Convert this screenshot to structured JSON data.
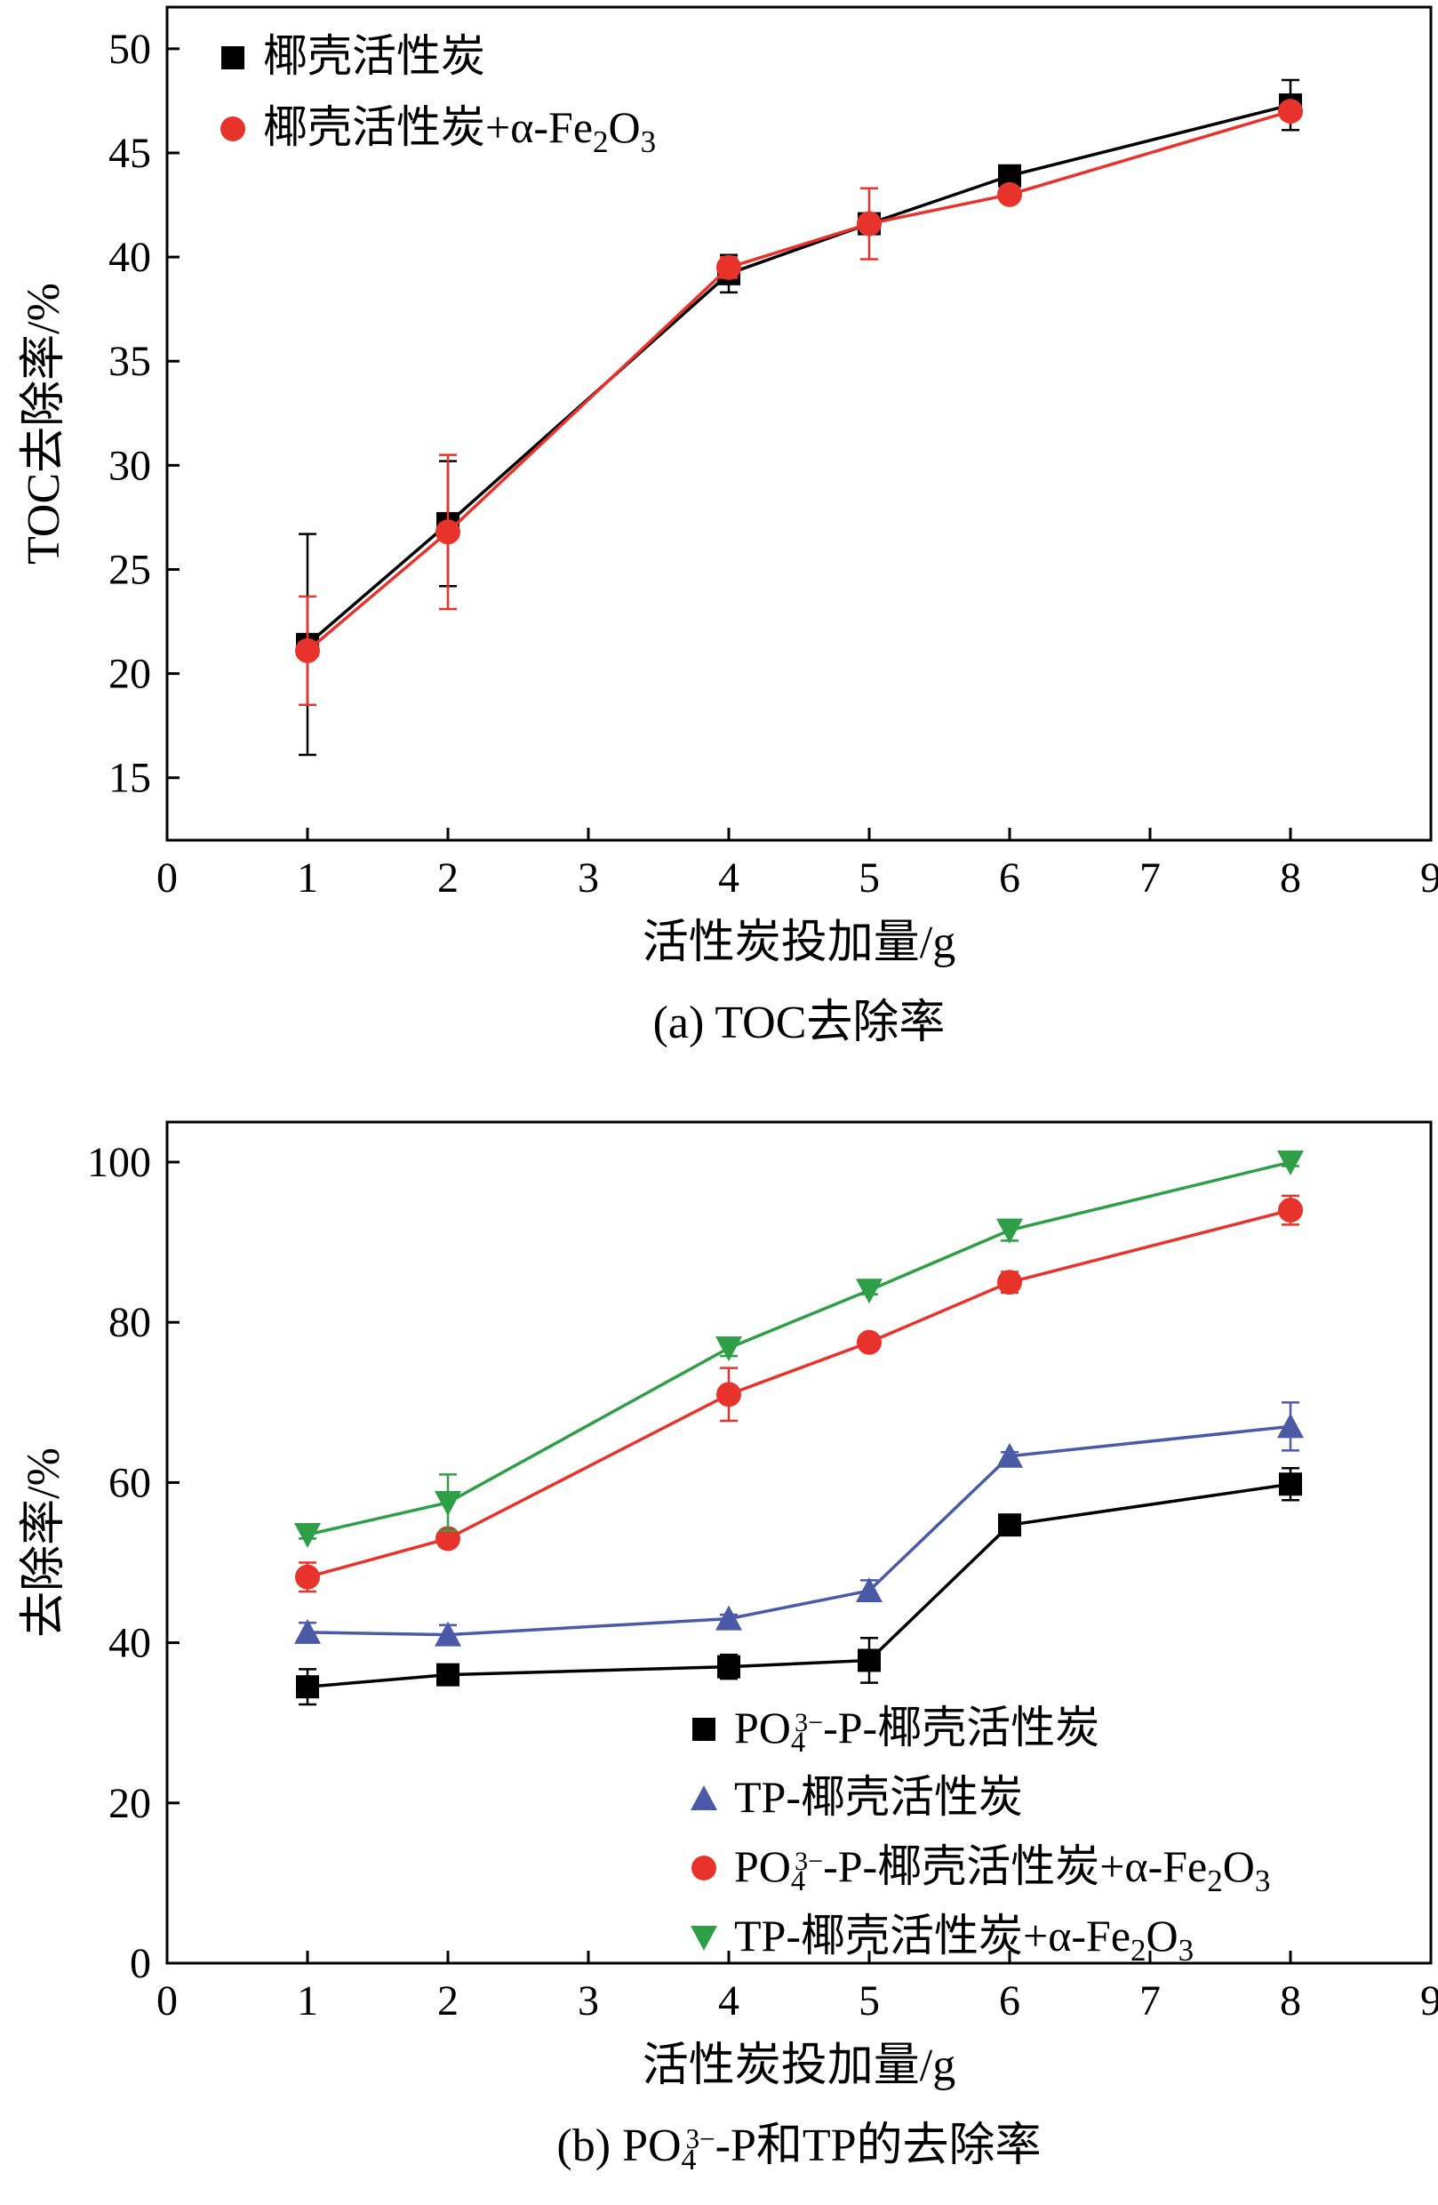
{
  "chart_data": [
    {
      "type": "line",
      "panel": "a",
      "caption": "(a) TOC去除率",
      "xlabel": "活性炭投加量/g",
      "ylabel": "TOC去除率/%",
      "xlim": [
        0,
        9
      ],
      "ylim": [
        12,
        52
      ],
      "xticks": [
        0,
        1,
        2,
        3,
        4,
        5,
        6,
        7,
        8,
        9
      ],
      "yticks": [
        15,
        20,
        25,
        30,
        35,
        40,
        45,
        50
      ],
      "grid": false,
      "legend_position": "top-left",
      "x": [
        1,
        2,
        4,
        5,
        6,
        8
      ],
      "series": [
        {
          "name": "椰壳活性炭",
          "marker": "square",
          "color": "#000000",
          "values": [
            21.4,
            27.2,
            39.2,
            41.6,
            43.9,
            47.3
          ],
          "errors": [
            5.3,
            3.0,
            0.9,
            0.0,
            0.0,
            1.2
          ]
        },
        {
          "name": "椰壳活性炭+α-Fe2O3",
          "marker": "circle",
          "color": "#e8332d",
          "values": [
            21.1,
            26.8,
            39.5,
            41.6,
            43.0,
            47.0
          ],
          "errors": [
            2.6,
            3.7,
            0.5,
            1.7,
            0.0,
            0.0
          ]
        }
      ]
    },
    {
      "type": "line",
      "panel": "b",
      "caption": "(b) PO43−-P和TP的去除率",
      "xlabel": "活性炭投加量/g",
      "ylabel": "去除率/%",
      "xlim": [
        0,
        9
      ],
      "ylim": [
        0,
        105
      ],
      "xticks": [
        0,
        1,
        2,
        3,
        4,
        5,
        6,
        7,
        8,
        9
      ],
      "yticks": [
        0,
        20,
        40,
        60,
        80,
        100
      ],
      "grid": false,
      "legend_position": "bottom-right",
      "x": [
        1,
        2,
        4,
        5,
        6,
        8
      ],
      "series": [
        {
          "name": "PO43−-P-椰壳活性炭",
          "marker": "square",
          "color": "#000000",
          "values": [
            34.5,
            36.0,
            37.0,
            37.8,
            54.7,
            59.8
          ],
          "errors": [
            2.2,
            0.5,
            1.5,
            2.8,
            0.5,
            2.0
          ]
        },
        {
          "name": "TP-椰壳活性炭",
          "marker": "triangle-up",
          "color": "#4a5aa6",
          "values": [
            41.3,
            41.0,
            43.0,
            46.5,
            63.3,
            67.0
          ],
          "errors": [
            1.2,
            1.2,
            0.5,
            1.3,
            0.5,
            3.0
          ]
        },
        {
          "name": "PO43−-P-椰壳活性炭+α-Fe2O3",
          "marker": "circle",
          "color": "#e8332d",
          "values": [
            48.2,
            53.0,
            71.0,
            77.5,
            85.0,
            94.0
          ],
          "errors": [
            1.8,
            0.5,
            3.3,
            0.5,
            1.3,
            1.8
          ]
        },
        {
          "name": "TP-椰壳活性炭+α-Fe2O3",
          "marker": "triangle-down",
          "color": "#2e9e47",
          "values": [
            53.5,
            57.5,
            76.8,
            84.0,
            91.5,
            100.0
          ],
          "errors": [
            0.5,
            3.5,
            1.0,
            0.5,
            1.3,
            0.5
          ]
        }
      ]
    }
  ]
}
